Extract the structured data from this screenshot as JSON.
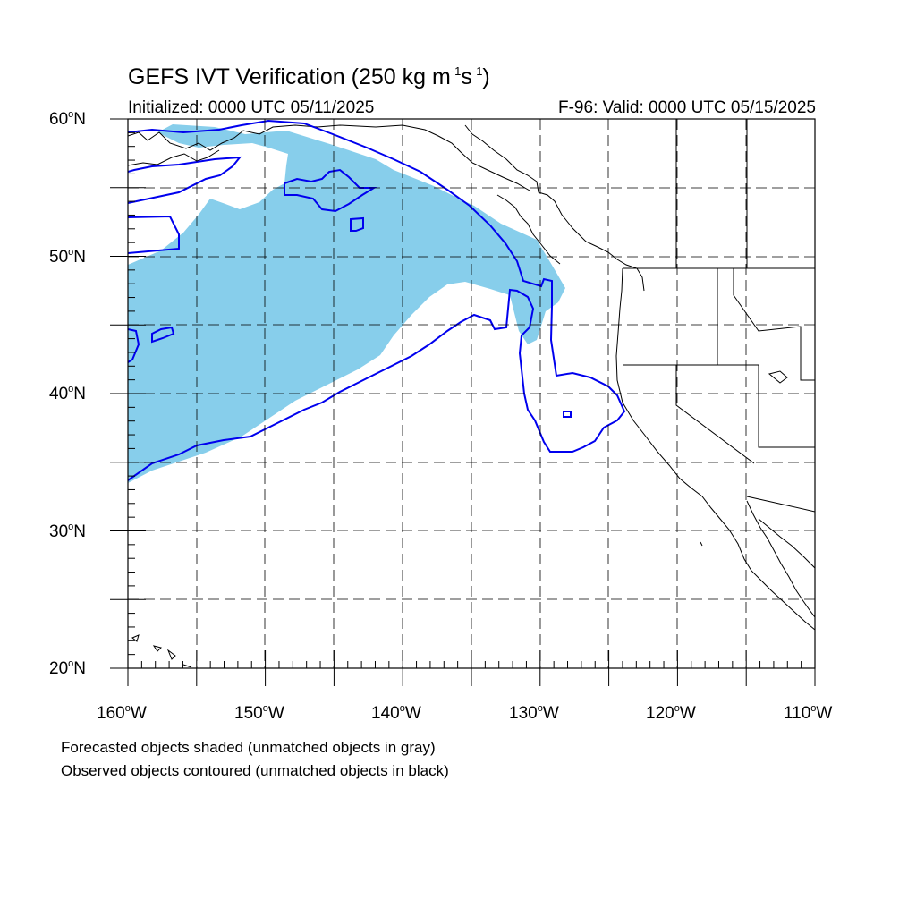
{
  "title": {
    "prefix": "GEFS IVT Verification (250 kg m",
    "exp1": "-1",
    "mid": "s",
    "exp2": "-1",
    "suffix": ")"
  },
  "initialized": "Initialized: 0000 UTC 05/11/2025",
  "valid": "F-96: Valid: 0000 UTC 05/15/2025",
  "lat_labels": [
    "60",
    "50",
    "40",
    "30",
    "20"
  ],
  "lat_suffix": "N",
  "lon_labels": [
    "160",
    "150",
    "140",
    "130",
    "120",
    "110"
  ],
  "lon_suffix": "W",
  "degree_symbol": "o",
  "legend": {
    "line1": "Forecasted objects shaded (unmatched objects in gray)",
    "line2": "Observed objects contoured (unmatched objects in black)"
  },
  "colors": {
    "forecast_fill": "#87ceeb",
    "observed_contour": "#0000ee",
    "coastline": "#000000",
    "grid": "#000000"
  },
  "map": {
    "projection": "cylindrical equidistant",
    "lon_range": [
      -160,
      -110
    ],
    "lat_range": [
      20,
      60
    ],
    "grid_spacing_deg": 5,
    "grid_style": "dashed"
  }
}
